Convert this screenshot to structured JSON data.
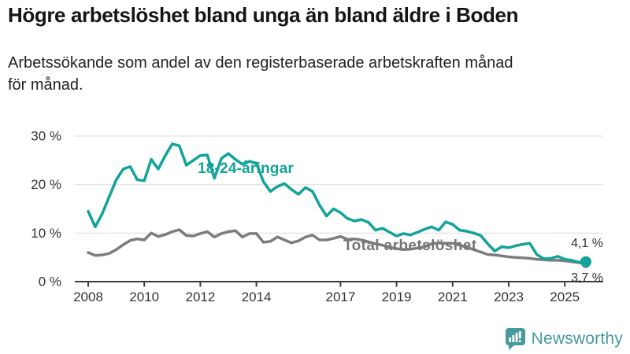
{
  "header": {
    "title": "Högre arbetslöshet bland unga än bland äldre i Boden",
    "subtitle_line1": "Arbetssökande som andel av den registerbaserade arbetskraften månad",
    "subtitle_line2": "för månad."
  },
  "colors": {
    "young_line": "#12A39A",
    "total_line": "#7D7D7D",
    "total_label_text": "#757575",
    "axis": "#3C3C3C",
    "gridline": "#DCDCDC",
    "tick_text": "#333333",
    "brand_teal": "#47999D"
  },
  "chart_data": {
    "type": "line",
    "title": "Högre arbetslöshet bland unga än bland äldre i Boden",
    "subtitle": "Arbetssökande som andel av den registerbaserade arbetskraften månad för månad.",
    "xlabel": "",
    "ylabel": "",
    "ylim": [
      0,
      30
    ],
    "grid": "horizontal",
    "grid_values": [
      10,
      20,
      30
    ],
    "ytick_values": [
      0,
      10,
      20,
      30
    ],
    "ytick_labels": [
      "0 %",
      "10 %",
      "20 %",
      "30 %"
    ],
    "xtick_years": [
      2008,
      2010,
      2012,
      2014,
      2017,
      2019,
      2021,
      2023,
      2025
    ],
    "xtick_labels": [
      "2008",
      "2010",
      "2012",
      "2014",
      "2017",
      "2019",
      "2021",
      "2023",
      "2025"
    ],
    "x_unit": "decimal year, quarterly samples of monthly data",
    "x": [
      2008.0,
      2008.25,
      2008.5,
      2008.75,
      2009.0,
      2009.25,
      2009.5,
      2009.75,
      2010.0,
      2010.25,
      2010.5,
      2010.75,
      2011.0,
      2011.25,
      2011.5,
      2011.75,
      2012.0,
      2012.25,
      2012.5,
      2012.75,
      2013.0,
      2013.25,
      2013.5,
      2013.75,
      2014.0,
      2014.25,
      2014.5,
      2014.75,
      2015.0,
      2015.25,
      2015.5,
      2015.75,
      2016.0,
      2016.25,
      2016.5,
      2016.75,
      2017.0,
      2017.25,
      2017.5,
      2017.75,
      2018.0,
      2018.25,
      2018.5,
      2018.75,
      2019.0,
      2019.25,
      2019.5,
      2019.75,
      2020.0,
      2020.25,
      2020.5,
      2020.75,
      2021.0,
      2021.25,
      2021.5,
      2021.75,
      2022.0,
      2022.25,
      2022.5,
      2022.75,
      2023.0,
      2023.25,
      2023.5,
      2023.75,
      2024.0,
      2024.25,
      2024.5,
      2024.75,
      2025.0,
      2025.25,
      2025.5,
      2025.75
    ],
    "series": [
      {
        "name": "Total arbetslöshet",
        "color": "#7D7D7D",
        "end_label": "3,7 %",
        "end_dot_radius": 5.5,
        "values": [
          6.0,
          5.4,
          5.5,
          5.8,
          6.6,
          7.6,
          8.5,
          8.8,
          8.6,
          10.0,
          9.3,
          9.7,
          10.3,
          10.7,
          9.5,
          9.4,
          9.9,
          10.3,
          9.2,
          9.9,
          10.3,
          10.5,
          9.2,
          9.9,
          9.9,
          8.1,
          8.3,
          9.2,
          8.6,
          8.0,
          8.4,
          9.2,
          9.6,
          8.6,
          8.6,
          8.9,
          9.3,
          8.7,
          8.8,
          8.6,
          8.2,
          7.8,
          7.5,
          7.1,
          6.8,
          6.6,
          6.7,
          6.9,
          7.2,
          7.8,
          8.0,
          7.9,
          7.9,
          7.5,
          7.1,
          6.6,
          6.1,
          5.6,
          5.5,
          5.3,
          5.1,
          5.0,
          4.9,
          4.8,
          4.6,
          4.5,
          4.4,
          4.4,
          4.3,
          4.1,
          3.9,
          3.7
        ]
      },
      {
        "name": "18-24-åringar",
        "color": "#12A39A",
        "end_label": "4,1 %",
        "end_dot_radius": 7,
        "values": [
          14.5,
          11.3,
          14.0,
          17.5,
          21.0,
          23.2,
          23.7,
          21.0,
          20.8,
          25.2,
          23.2,
          26.0,
          28.4,
          28.0,
          24.0,
          25.0,
          26.0,
          26.1,
          21.3,
          25.4,
          26.4,
          25.2,
          24.2,
          24.8,
          24.4,
          20.6,
          18.6,
          19.6,
          20.2,
          19.0,
          18.0,
          19.4,
          18.6,
          15.8,
          13.5,
          15.0,
          14.2,
          13.0,
          12.5,
          12.8,
          12.2,
          10.6,
          11.0,
          10.2,
          9.4,
          9.9,
          9.6,
          10.2,
          10.8,
          11.3,
          10.6,
          12.3,
          11.8,
          10.6,
          10.4,
          10.0,
          9.5,
          7.8,
          6.3,
          7.2,
          7.0,
          7.4,
          7.7,
          7.9,
          5.6,
          4.7,
          4.8,
          5.2,
          4.6,
          4.4,
          4.0,
          4.1
        ]
      }
    ],
    "annotations": {
      "young_label": "18-24-åringar",
      "total_label": "Total arbetslöshet",
      "young_end": "4,1 %",
      "total_end": "3,7 %"
    }
  },
  "footer": {
    "brand_label": "Newsworthy"
  }
}
